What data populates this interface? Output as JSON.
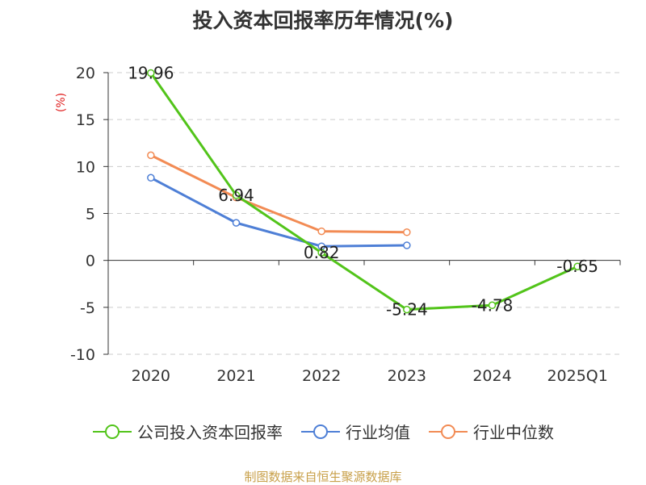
{
  "chart_data": {
    "type": "line",
    "title": "投入资本回报率历年情况(%)",
    "ylabel": "(%)",
    "xlabel": "",
    "categories": [
      "2020",
      "2021",
      "2022",
      "2023",
      "2024",
      "2025Q1"
    ],
    "yticks": [
      "20",
      "15",
      "10",
      "5",
      "0",
      "-5",
      "-10"
    ],
    "ylim": [
      -10,
      20
    ],
    "grid": true,
    "legend_position": "bottom",
    "series": [
      {
        "name": "公司投入资本回报率",
        "color": "#52c41a",
        "values": [
          19.96,
          6.94,
          0.82,
          -5.24,
          -4.78,
          -0.65
        ],
        "labels": [
          "19.96",
          "6.94",
          "0.82",
          "-5.24",
          "-4.78",
          "-0.65"
        ]
      },
      {
        "name": "行业均值",
        "color": "#4e7fd6",
        "values": [
          8.8,
          4.0,
          1.5,
          1.6,
          null,
          null
        ]
      },
      {
        "name": "行业中位数",
        "color": "#f28b54",
        "values": [
          11.2,
          6.7,
          3.1,
          3.0,
          null,
          null
        ]
      }
    ]
  },
  "source": "制图数据来自恒生聚源数据库"
}
